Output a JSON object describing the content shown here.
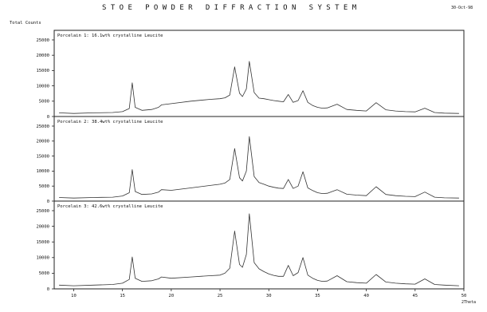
{
  "header": {
    "title": "STOE POWDER DIFFRACTION SYSTEM",
    "date": "30-Oct-98"
  },
  "chart_data": {
    "type": "line",
    "ylabel": "Total Counts",
    "xlabel": "2Theta",
    "xlim": [
      8,
      50
    ],
    "x_ticks": [
      10,
      15,
      20,
      25,
      30,
      35,
      40,
      45,
      50
    ],
    "background_color": "#ffffff",
    "line_color": "#333333",
    "panels": [
      {
        "label": "Porcelain 1: 16.1wt% crystalline Leucite",
        "ylim": [
          0,
          25000
        ],
        "y_ticks": [
          0,
          5000,
          10000,
          15000,
          20000,
          25000
        ],
        "x": [
          8.5,
          10,
          12,
          14,
          15,
          15.7,
          16,
          16.3,
          17,
          18,
          18.7,
          19,
          20,
          22,
          24,
          25,
          25.5,
          26,
          26.5,
          27,
          27.3,
          27.7,
          28,
          28.5,
          29,
          29.5,
          30,
          30.5,
          31,
          31.5,
          32,
          32.5,
          33,
          33.5,
          34,
          34.5,
          35,
          35.5,
          36,
          37,
          38,
          39,
          40,
          41,
          42,
          43,
          44,
          45,
          46,
          47,
          48,
          49.5
        ],
        "y": [
          1200,
          1000,
          1200,
          1300,
          1600,
          2600,
          11000,
          3000,
          2000,
          2300,
          3000,
          3800,
          4200,
          5000,
          5600,
          5800,
          6100,
          7000,
          16200,
          7600,
          6500,
          9000,
          18000,
          7800,
          6000,
          5800,
          5500,
          5200,
          5000,
          4800,
          7200,
          4600,
          5200,
          8400,
          4600,
          3600,
          3000,
          2700,
          2800,
          4000,
          2300,
          2000,
          1800,
          4500,
          2200,
          1800,
          1600,
          1500,
          2700,
          1300,
          1100,
          1000
        ]
      },
      {
        "label": "Porcelain 2: 38.4wt% crystalline Leucite",
        "ylim": [
          0,
          25000
        ],
        "y_ticks": [
          0,
          5000,
          10000,
          15000,
          20000,
          25000
        ],
        "x": [
          8.5,
          10,
          12,
          14,
          15,
          15.7,
          16,
          16.3,
          17,
          18,
          18.7,
          19,
          20,
          22,
          24,
          25,
          25.5,
          26,
          26.5,
          27,
          27.3,
          27.7,
          28,
          28.5,
          29,
          29.5,
          30,
          30.5,
          31,
          31.5,
          32,
          32.5,
          33,
          33.5,
          34,
          34.5,
          35,
          35.5,
          36,
          37,
          38,
          39,
          40,
          41,
          42,
          43,
          44,
          45,
          46,
          47,
          48,
          49.5
        ],
        "y": [
          1200,
          1000,
          1200,
          1300,
          1700,
          2800,
          10500,
          3200,
          2200,
          2400,
          3000,
          3800,
          3600,
          4400,
          5200,
          5600,
          6000,
          7200,
          17500,
          7800,
          6700,
          10000,
          21500,
          8200,
          6200,
          5600,
          5000,
          4600,
          4300,
          4200,
          7200,
          4200,
          5000,
          9800,
          4400,
          3500,
          2800,
          2500,
          2600,
          3800,
          2300,
          2000,
          1800,
          4800,
          2200,
          1800,
          1600,
          1500,
          3000,
          1300,
          1100,
          1000
        ]
      },
      {
        "label": "Porcelain 3: 42.6wt% crystalline Leucite",
        "ylim": [
          0,
          25000
        ],
        "y_ticks": [
          0,
          5000,
          10000,
          15000,
          20000,
          25000
        ],
        "x": [
          8.5,
          10,
          12,
          14,
          15,
          15.7,
          16,
          16.3,
          17,
          18,
          18.7,
          19,
          20,
          22,
          24,
          25,
          25.5,
          26,
          26.5,
          27,
          27.3,
          27.7,
          28,
          28.5,
          29,
          29.5,
          30,
          30.5,
          31,
          31.5,
          32,
          32.5,
          33,
          33.5,
          34,
          34.5,
          35,
          35.5,
          36,
          37,
          38,
          39,
          40,
          41,
          42,
          43,
          44,
          45,
          46,
          47,
          48,
          49.5
        ],
        "y": [
          1200,
          1000,
          1200,
          1400,
          1800,
          3000,
          10200,
          3400,
          2400,
          2600,
          3200,
          3800,
          3400,
          3800,
          4200,
          4400,
          5000,
          6600,
          18500,
          7800,
          6900,
          11000,
          24000,
          8400,
          6400,
          5500,
          4800,
          4300,
          4000,
          4000,
          7500,
          4200,
          5200,
          10000,
          4400,
          3400,
          2700,
          2400,
          2500,
          4200,
          2300,
          2000,
          1800,
          4600,
          2200,
          1800,
          1600,
          1500,
          3200,
          1400,
          1200,
          1000
        ]
      }
    ]
  }
}
